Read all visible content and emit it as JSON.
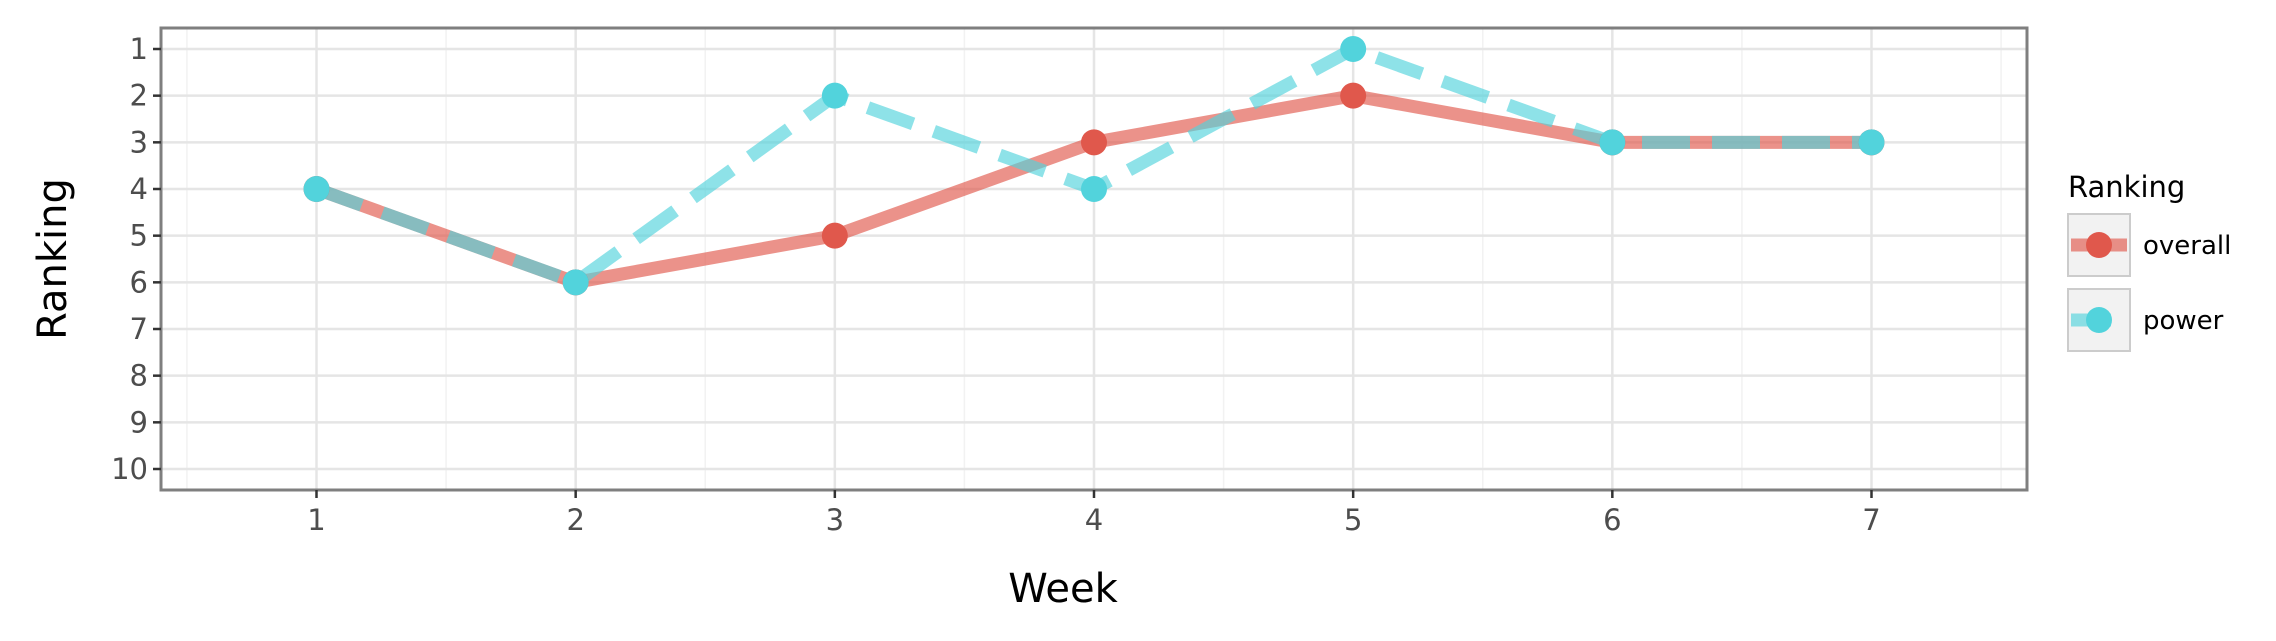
{
  "chart_data": {
    "type": "line",
    "xlabel": "Week",
    "ylabel": "Ranking",
    "x": [
      1,
      2,
      3,
      4,
      5,
      6,
      7
    ],
    "xlim": [
      0.4,
      7.6
    ],
    "ylim": [
      10.45,
      0.55
    ],
    "y_reversed": true,
    "yticks": [
      1,
      2,
      3,
      4,
      5,
      6,
      7,
      8,
      9,
      10
    ],
    "grid": true,
    "legend_title": "Ranking",
    "legend_position": "right",
    "series": [
      {
        "name": "overall",
        "values": [
          4,
          6,
          5,
          3,
          2,
          3,
          3
        ],
        "color": "#e0584c",
        "line_style": "solid"
      },
      {
        "name": "power",
        "values": [
          4,
          6,
          2,
          4,
          1,
          3,
          3
        ],
        "color": "#52d3dc",
        "line_style": "dashed"
      }
    ]
  }
}
